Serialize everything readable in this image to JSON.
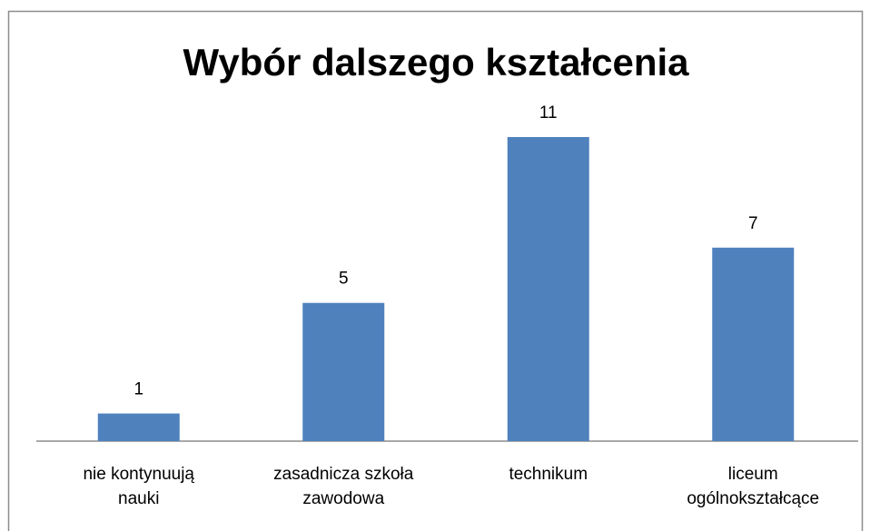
{
  "chart_data": {
    "type": "bar",
    "title": "Wybór dalszego kształcenia",
    "categories": [
      "nie kontynuują nauki",
      "zasadnicza szkoła zawodowa",
      "technikum",
      "liceum ogólnokształcące"
    ],
    "values": [
      1,
      5,
      11,
      7
    ],
    "color": "#4f81bd"
  }
}
